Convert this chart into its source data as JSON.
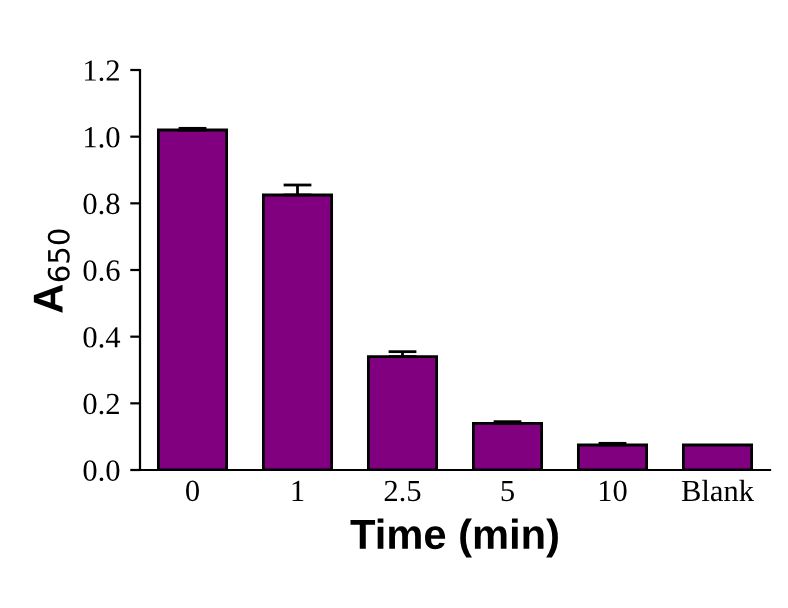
{
  "chart_data": {
    "type": "bar",
    "xlabel": "Time (min)",
    "ylabel": "A$_{650}$",
    "categories": [
      "0",
      "1",
      "2.5",
      "5",
      "10",
      "Blank"
    ],
    "values": [
      1.02,
      0.825,
      0.34,
      0.14,
      0.075,
      0.075
    ],
    "errors": [
      [
        1.02,
        1.025
      ],
      [
        0.825,
        0.855
      ],
      [
        0.34,
        0.355
      ],
      [
        0.14,
        0.145
      ],
      [
        0.075,
        0.08
      ],
      null
    ],
    "color": "#800080",
    "ylim": [
      0,
      1.2
    ],
    "yticks": [
      {
        "value": 0,
        "label": "0.0"
      },
      0.2,
      0.4,
      0.6,
      0.8,
      {
        "value": 1,
        "label": "1.0"
      },
      1.2
    ],
    "grid": false
  }
}
